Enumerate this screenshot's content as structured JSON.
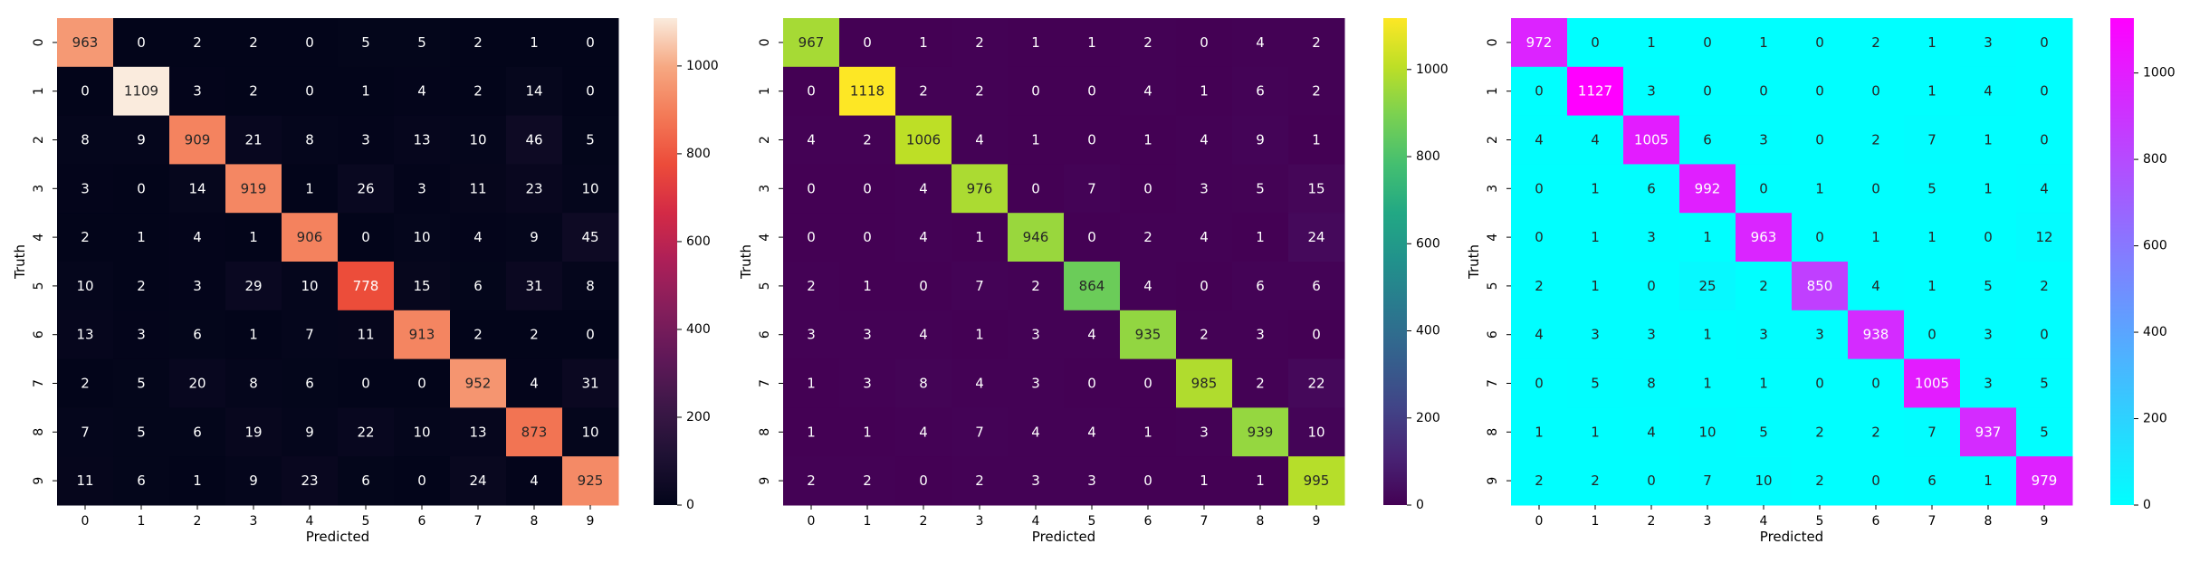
{
  "chart_data": [
    {
      "type": "heatmap",
      "colormap": "rocket",
      "xlabel": "Predicted",
      "ylabel": "Truth",
      "x_categories": [
        "0",
        "1",
        "2",
        "3",
        "4",
        "5",
        "6",
        "7",
        "8",
        "9"
      ],
      "y_categories": [
        "0",
        "1",
        "2",
        "3",
        "4",
        "5",
        "6",
        "7",
        "8",
        "9"
      ],
      "values": [
        [
          963,
          0,
          2,
          2,
          0,
          5,
          5,
          2,
          1,
          0
        ],
        [
          0,
          1109,
          3,
          2,
          0,
          1,
          4,
          2,
          14,
          0
        ],
        [
          8,
          9,
          909,
          21,
          8,
          3,
          13,
          10,
          46,
          5
        ],
        [
          3,
          0,
          14,
          919,
          1,
          26,
          3,
          11,
          23,
          10
        ],
        [
          2,
          1,
          4,
          1,
          906,
          0,
          10,
          4,
          9,
          45
        ],
        [
          10,
          2,
          3,
          29,
          10,
          778,
          15,
          6,
          31,
          8
        ],
        [
          13,
          3,
          6,
          1,
          7,
          11,
          913,
          2,
          2,
          0
        ],
        [
          2,
          5,
          20,
          8,
          6,
          0,
          0,
          952,
          4,
          31
        ],
        [
          7,
          5,
          6,
          19,
          9,
          22,
          10,
          13,
          873,
          10
        ],
        [
          11,
          6,
          1,
          9,
          23,
          6,
          0,
          24,
          4,
          925
        ]
      ],
      "vmin": 0,
      "vmax": 1109,
      "colorbar_ticks": [
        "0",
        "200",
        "400",
        "600",
        "800",
        "1000"
      ]
    },
    {
      "type": "heatmap",
      "colormap": "viridis",
      "xlabel": "Predicted",
      "ylabel": "Truth",
      "x_categories": [
        "0",
        "1",
        "2",
        "3",
        "4",
        "5",
        "6",
        "7",
        "8",
        "9"
      ],
      "y_categories": [
        "0",
        "1",
        "2",
        "3",
        "4",
        "5",
        "6",
        "7",
        "8",
        "9"
      ],
      "values": [
        [
          967,
          0,
          1,
          2,
          1,
          1,
          2,
          0,
          4,
          2
        ],
        [
          0,
          1118,
          2,
          2,
          0,
          0,
          4,
          1,
          6,
          2
        ],
        [
          4,
          2,
          1006,
          4,
          1,
          0,
          1,
          4,
          9,
          1
        ],
        [
          0,
          0,
          4,
          976,
          0,
          7,
          0,
          3,
          5,
          15
        ],
        [
          0,
          0,
          4,
          1,
          946,
          0,
          2,
          4,
          1,
          24
        ],
        [
          2,
          1,
          0,
          7,
          2,
          864,
          4,
          0,
          6,
          6
        ],
        [
          3,
          3,
          4,
          1,
          3,
          4,
          935,
          2,
          3,
          0
        ],
        [
          1,
          3,
          8,
          4,
          3,
          0,
          0,
          985,
          2,
          22
        ],
        [
          1,
          1,
          4,
          7,
          4,
          4,
          1,
          3,
          939,
          10
        ],
        [
          2,
          2,
          0,
          2,
          3,
          3,
          0,
          1,
          1,
          995
        ]
      ],
      "vmin": 0,
      "vmax": 1118,
      "colorbar_ticks": [
        "0",
        "200",
        "400",
        "600",
        "800",
        "1000"
      ]
    },
    {
      "type": "heatmap",
      "colormap": "cool",
      "xlabel": "Predicted",
      "ylabel": "Truth",
      "x_categories": [
        "0",
        "1",
        "2",
        "3",
        "4",
        "5",
        "6",
        "7",
        "8",
        "9"
      ],
      "y_categories": [
        "0",
        "1",
        "2",
        "3",
        "4",
        "5",
        "6",
        "7",
        "8",
        "9"
      ],
      "values": [
        [
          972,
          0,
          1,
          0,
          1,
          0,
          2,
          1,
          3,
          0
        ],
        [
          0,
          1127,
          3,
          0,
          0,
          0,
          0,
          1,
          4,
          0
        ],
        [
          4,
          4,
          1005,
          6,
          3,
          0,
          2,
          7,
          1,
          0
        ],
        [
          0,
          1,
          6,
          992,
          0,
          1,
          0,
          5,
          1,
          4
        ],
        [
          0,
          1,
          3,
          1,
          963,
          0,
          1,
          1,
          0,
          12
        ],
        [
          2,
          1,
          0,
          25,
          2,
          850,
          4,
          1,
          5,
          2
        ],
        [
          4,
          3,
          3,
          1,
          3,
          3,
          938,
          0,
          3,
          0
        ],
        [
          0,
          5,
          8,
          1,
          1,
          0,
          0,
          1005,
          3,
          5
        ],
        [
          1,
          1,
          4,
          10,
          5,
          2,
          2,
          7,
          937,
          5
        ],
        [
          2,
          2,
          0,
          7,
          10,
          2,
          0,
          6,
          1,
          979
        ]
      ],
      "vmin": 0,
      "vmax": 1127,
      "colorbar_ticks": [
        "0",
        "200",
        "400",
        "600",
        "800",
        "1000"
      ]
    }
  ]
}
